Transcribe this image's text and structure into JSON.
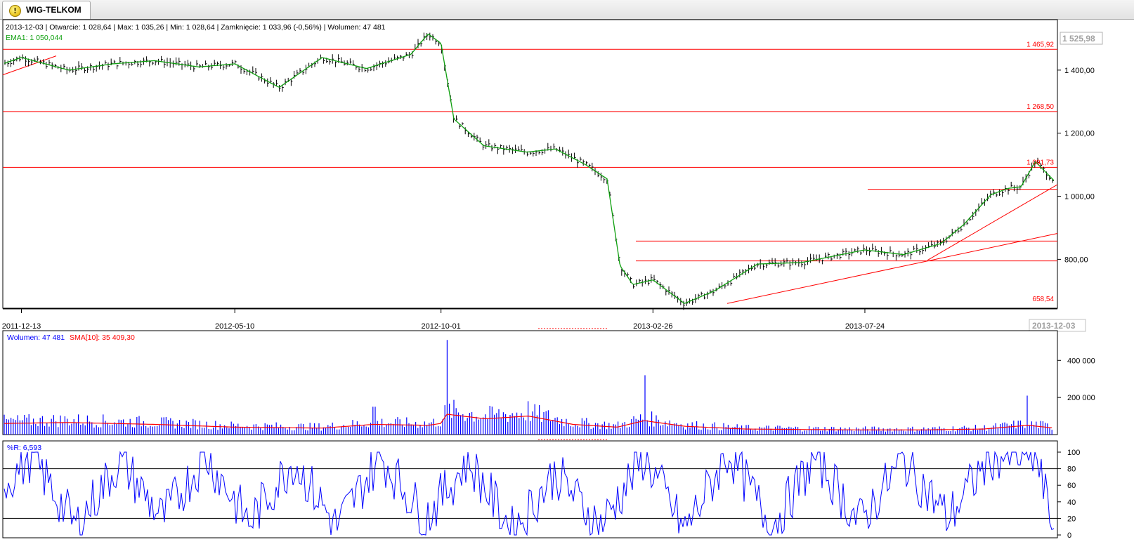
{
  "app": {
    "tab_title": "WIG-TELKOM",
    "tab_icon": "warning-icon"
  },
  "colors": {
    "price_bar": "#000000",
    "ema": "#10a010",
    "level_line": "#ff0000",
    "volume": "#0000ff",
    "sma": "#ff0000",
    "wr": "#0000ff",
    "wr_level": "#000000",
    "axis": "#000000"
  },
  "price_panel": {
    "info_line": "2013-12-03 | Otwarcie: 1 028,64 | Max: 1 035,26 | Min: 1 028,64 | Zamknięcie: 1 033,96 (-0,56%)  | Wolumen: 47 481",
    "ema_label": "EMA1: 1 050,044",
    "last_value_badge": "1 525,98",
    "y_ticks": [
      "1 400,00",
      "1 200,00",
      "1 000,00",
      "800,00"
    ],
    "y_tick_values": [
      1400,
      1200,
      1000,
      800
    ],
    "level_labels": [
      "1 465,92",
      "1 268,50",
      "1 091,73",
      "658,54"
    ],
    "x_ticks": [
      "2011-12-13",
      "2012-05-10",
      "2012-10-01",
      "2013-02-26",
      "2013-07-24"
    ],
    "x_tick_positions": [
      0.0,
      0.2,
      0.4,
      0.6,
      0.8
    ],
    "current_date_label": "2013-12-03"
  },
  "volume_panel": {
    "label_volume": "Wolumen: 47 481",
    "label_sma": "SMA[10]: 35 409,30",
    "y_ticks": [
      "400 000",
      "200 000"
    ],
    "y_tick_values": [
      400000,
      200000
    ]
  },
  "wr_panel": {
    "label": "%R: 6,593",
    "y_ticks": [
      "100",
      "80",
      "60",
      "40",
      "20",
      "0"
    ],
    "y_tick_values": [
      100,
      80,
      60,
      40,
      20,
      0
    ],
    "levels": [
      80,
      20
    ]
  },
  "chart_data": [
    {
      "type": "line",
      "title": "WIG-TELKOM",
      "ylim": [
        645,
        1560
      ],
      "x": [
        "2011-11-30",
        "2011-12-13",
        "2012-01-15",
        "2012-02-15",
        "2012-03-15",
        "2012-04-15",
        "2012-05-10",
        "2012-06-10",
        "2012-07-10",
        "2012-08-10",
        "2012-09-10",
        "2012-09-22",
        "2012-10-01",
        "2012-10-10",
        "2012-10-31",
        "2012-11-30",
        "2012-12-20",
        "2013-01-10",
        "2013-01-25",
        "2013-02-03",
        "2013-02-12",
        "2013-02-26",
        "2013-03-20",
        "2013-04-10",
        "2013-05-10",
        "2013-06-10",
        "2013-07-24",
        "2013-08-20",
        "2013-09-15",
        "2013-10-01",
        "2013-10-20",
        "2013-11-01",
        "2013-11-10",
        "2013-11-20",
        "2013-12-03"
      ],
      "series": [
        {
          "name": "EMA1",
          "values": [
            1420,
            1440,
            1400,
            1420,
            1430,
            1410,
            1420,
            1345,
            1440,
            1405,
            1450,
            1515,
            1485,
            1245,
            1160,
            1140,
            1150,
            1100,
            1055,
            780,
            720,
            735,
            660,
            700,
            785,
            790,
            830,
            815,
            850,
            910,
            1005,
            1025,
            1030,
            1110,
            1050
          ]
        }
      ]
    },
    {
      "type": "bar",
      "title": "Wolumen",
      "ylim": [
        0,
        560000
      ],
      "x": [
        "2011-11-30",
        "2012-01-15",
        "2012-03-15",
        "2012-05-10",
        "2012-07-10",
        "2012-08-15",
        "2012-09-22",
        "2012-10-01",
        "2012-10-05",
        "2012-11-01",
        "2012-12-01",
        "2013-01-01",
        "2013-02-01",
        "2013-02-20",
        "2013-03-20",
        "2013-05-01",
        "2013-07-24",
        "2013-09-01",
        "2013-10-15",
        "2013-11-15",
        "2013-12-03"
      ],
      "series": [
        {
          "name": "Wolumen",
          "values": [
            90000,
            85000,
            75000,
            60000,
            65000,
            150000,
            90000,
            120000,
            510000,
            90000,
            180000,
            110000,
            70000,
            320000,
            60000,
            50000,
            45000,
            50000,
            60000,
            210000,
            47481
          ]
        },
        {
          "name": "SMA[10]",
          "values": [
            60000,
            65000,
            55000,
            40000,
            35000,
            55000,
            50000,
            60000,
            110000,
            85000,
            100000,
            55000,
            40000,
            75000,
            45000,
            30000,
            25000,
            25000,
            30000,
            50000,
            35409
          ]
        }
      ]
    },
    {
      "type": "line",
      "title": "%R",
      "ylim": [
        0,
        100
      ],
      "x": [
        "2011-11-30",
        "2011-12-20",
        "2012-01-20",
        "2012-02-20",
        "2012-03-20",
        "2012-04-20",
        "2012-05-20",
        "2012-06-20",
        "2012-07-20",
        "2012-08-20",
        "2012-09-20",
        "2012-10-20",
        "2012-11-20",
        "2012-12-20",
        "2013-01-20",
        "2013-02-20",
        "2013-03-20",
        "2013-04-20",
        "2013-05-20",
        "2013-06-20",
        "2013-07-20",
        "2013-08-20",
        "2013-09-20",
        "2013-10-20",
        "2013-11-20",
        "2013-12-03"
      ],
      "series": [
        {
          "name": "%R",
          "values": [
            60,
            95,
            10,
            90,
            20,
            95,
            15,
            90,
            10,
            95,
            20,
            90,
            5,
            75,
            10,
            95,
            5,
            100,
            10,
            95,
            15,
            90,
            20,
            95,
            95,
            7
          ]
        }
      ]
    }
  ]
}
